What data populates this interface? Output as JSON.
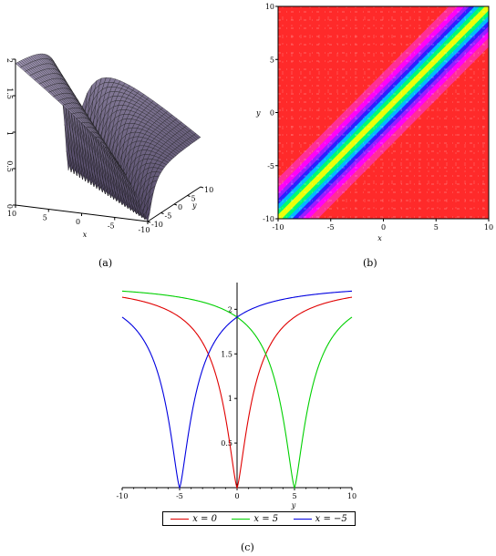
{
  "captions": {
    "a": "(a)",
    "b": "(b)",
    "c": "(c)"
  },
  "chart_data": [
    {
      "id": "a",
      "type": "surface",
      "xlabel": "x",
      "ylabel": "y",
      "x_ticks": [
        "10",
        "5",
        "0",
        "-5",
        "-10"
      ],
      "y_ticks": [
        "-10",
        "-5",
        "0",
        "5",
        "10"
      ],
      "z_ticks": [
        "0",
        "0.5",
        "1",
        "1.5",
        "2"
      ],
      "surface_color": "#6b5a78"
    },
    {
      "id": "b",
      "type": "heatmap",
      "xlabel": "x",
      "ylabel": "y",
      "xlim": [
        -10,
        10
      ],
      "ylim": [
        -10,
        10
      ],
      "x_ticks": [
        "-10",
        "-5",
        "0",
        "5",
        "10"
      ],
      "y_ticks": [
        "-10",
        "-5",
        "0",
        "5",
        "10"
      ],
      "ridge": "y = x",
      "colors": {
        "low": "#ff2a2a",
        "mid_low": "#ff00ff",
        "mid": "#2222ff",
        "mid2": "#00c8ff",
        "mid3": "#00ff66",
        "high": "#ffff00"
      }
    },
    {
      "id": "c",
      "type": "line",
      "xlabel": "y",
      "xlim": [
        -10,
        10
      ],
      "ylim": [
        0,
        2.3
      ],
      "x_ticks": [
        "-10",
        "-5",
        "0",
        "5",
        "10"
      ],
      "y_ticks": [
        "0.5",
        "1",
        "1.5",
        "2"
      ],
      "series": [
        {
          "name": "x = 0",
          "color": "#e00000",
          "center": 0,
          "max": 2.3,
          "width": 3.0
        },
        {
          "name": "x = 5",
          "color": "#00d000",
          "center": 5,
          "max": 2.3,
          "width": 3.0
        },
        {
          "name": "x = −5",
          "color": "#0000e0",
          "center": -5,
          "max": 2.3,
          "width": 3.0
        }
      ]
    }
  ]
}
